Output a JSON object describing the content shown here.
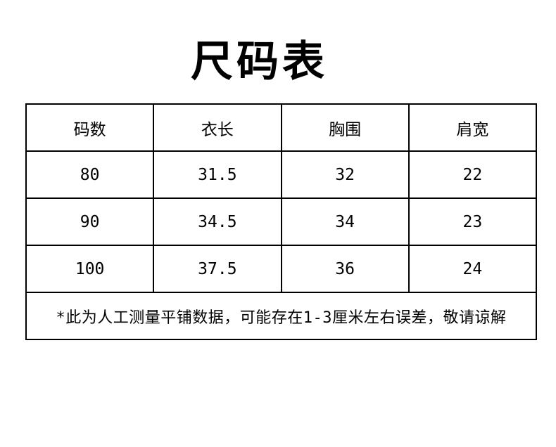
{
  "chart_data": {
    "type": "table",
    "title": "尺码表",
    "columns": [
      "码数",
      "衣长",
      "胸围",
      "肩宽"
    ],
    "rows": [
      [
        "80",
        "31.5",
        "32",
        "22"
      ],
      [
        "90",
        "34.5",
        "34",
        "23"
      ],
      [
        "100",
        "37.5",
        "36",
        "24"
      ]
    ],
    "note": "*此为人工测量平铺数据，可能存在1-3厘米左右误差，敬请谅解"
  },
  "colors": {
    "text": "#000000",
    "border": "#000000",
    "background": "#ffffff"
  }
}
